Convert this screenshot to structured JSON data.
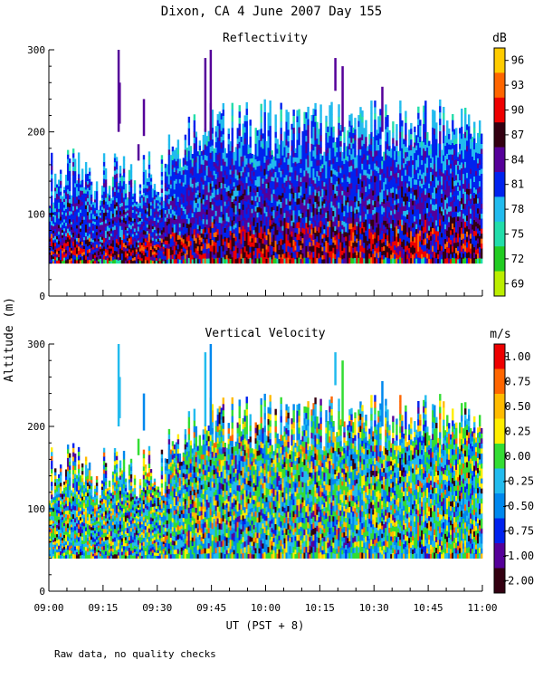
{
  "figure": {
    "title": "Dixon, CA  4 June 2007  Day 155",
    "ylabel": "Altitude (m)",
    "xlabel": "UT  (PST + 8)",
    "footnote": "Raw data, no quality checks"
  },
  "chart_data": [
    {
      "type": "heatmap",
      "title": "Reflectivity",
      "ylim": [
        0,
        300
      ],
      "y_ticks": [
        0,
        100,
        200,
        300
      ],
      "x_range_minutes": [
        0,
        120
      ],
      "data_alt_range": [
        40,
        300
      ],
      "colorbar": {
        "unit": "dB",
        "labels": [
          "96",
          "93",
          "90",
          "87",
          "84",
          "81",
          "78",
          "75",
          "72",
          "69"
        ],
        "colors": [
          "#ffcc00",
          "#ff6600",
          "#ee0000",
          "#330011",
          "#550099",
          "#0022ee",
          "#22bbee",
          "#22ddaa",
          "#22cc22",
          "#bbee00"
        ]
      }
    },
    {
      "type": "heatmap",
      "title": "Vertical Velocity",
      "ylim": [
        0,
        300
      ],
      "y_ticks": [
        0,
        100,
        200,
        300
      ],
      "x_range_minutes": [
        0,
        120
      ],
      "data_alt_range": [
        40,
        300
      ],
      "colorbar": {
        "unit": "m/s",
        "labels": [
          "1.00",
          "0.75",
          "0.50",
          "0.25",
          "0.00",
          "-0.25",
          "-0.50",
          "-0.75",
          "-1.00",
          "-2.00"
        ],
        "colors": [
          "#ee0000",
          "#ff6600",
          "#ffbb00",
          "#ffee00",
          "#33dd33",
          "#22bbee",
          "#0088ee",
          "#0022ee",
          "#550099",
          "#330011"
        ]
      }
    }
  ],
  "x_ticks": [
    "09:00",
    "09:15",
    "09:30",
    "09:45",
    "10:00",
    "10:15",
    "10:30",
    "10:45",
    "11:00"
  ]
}
